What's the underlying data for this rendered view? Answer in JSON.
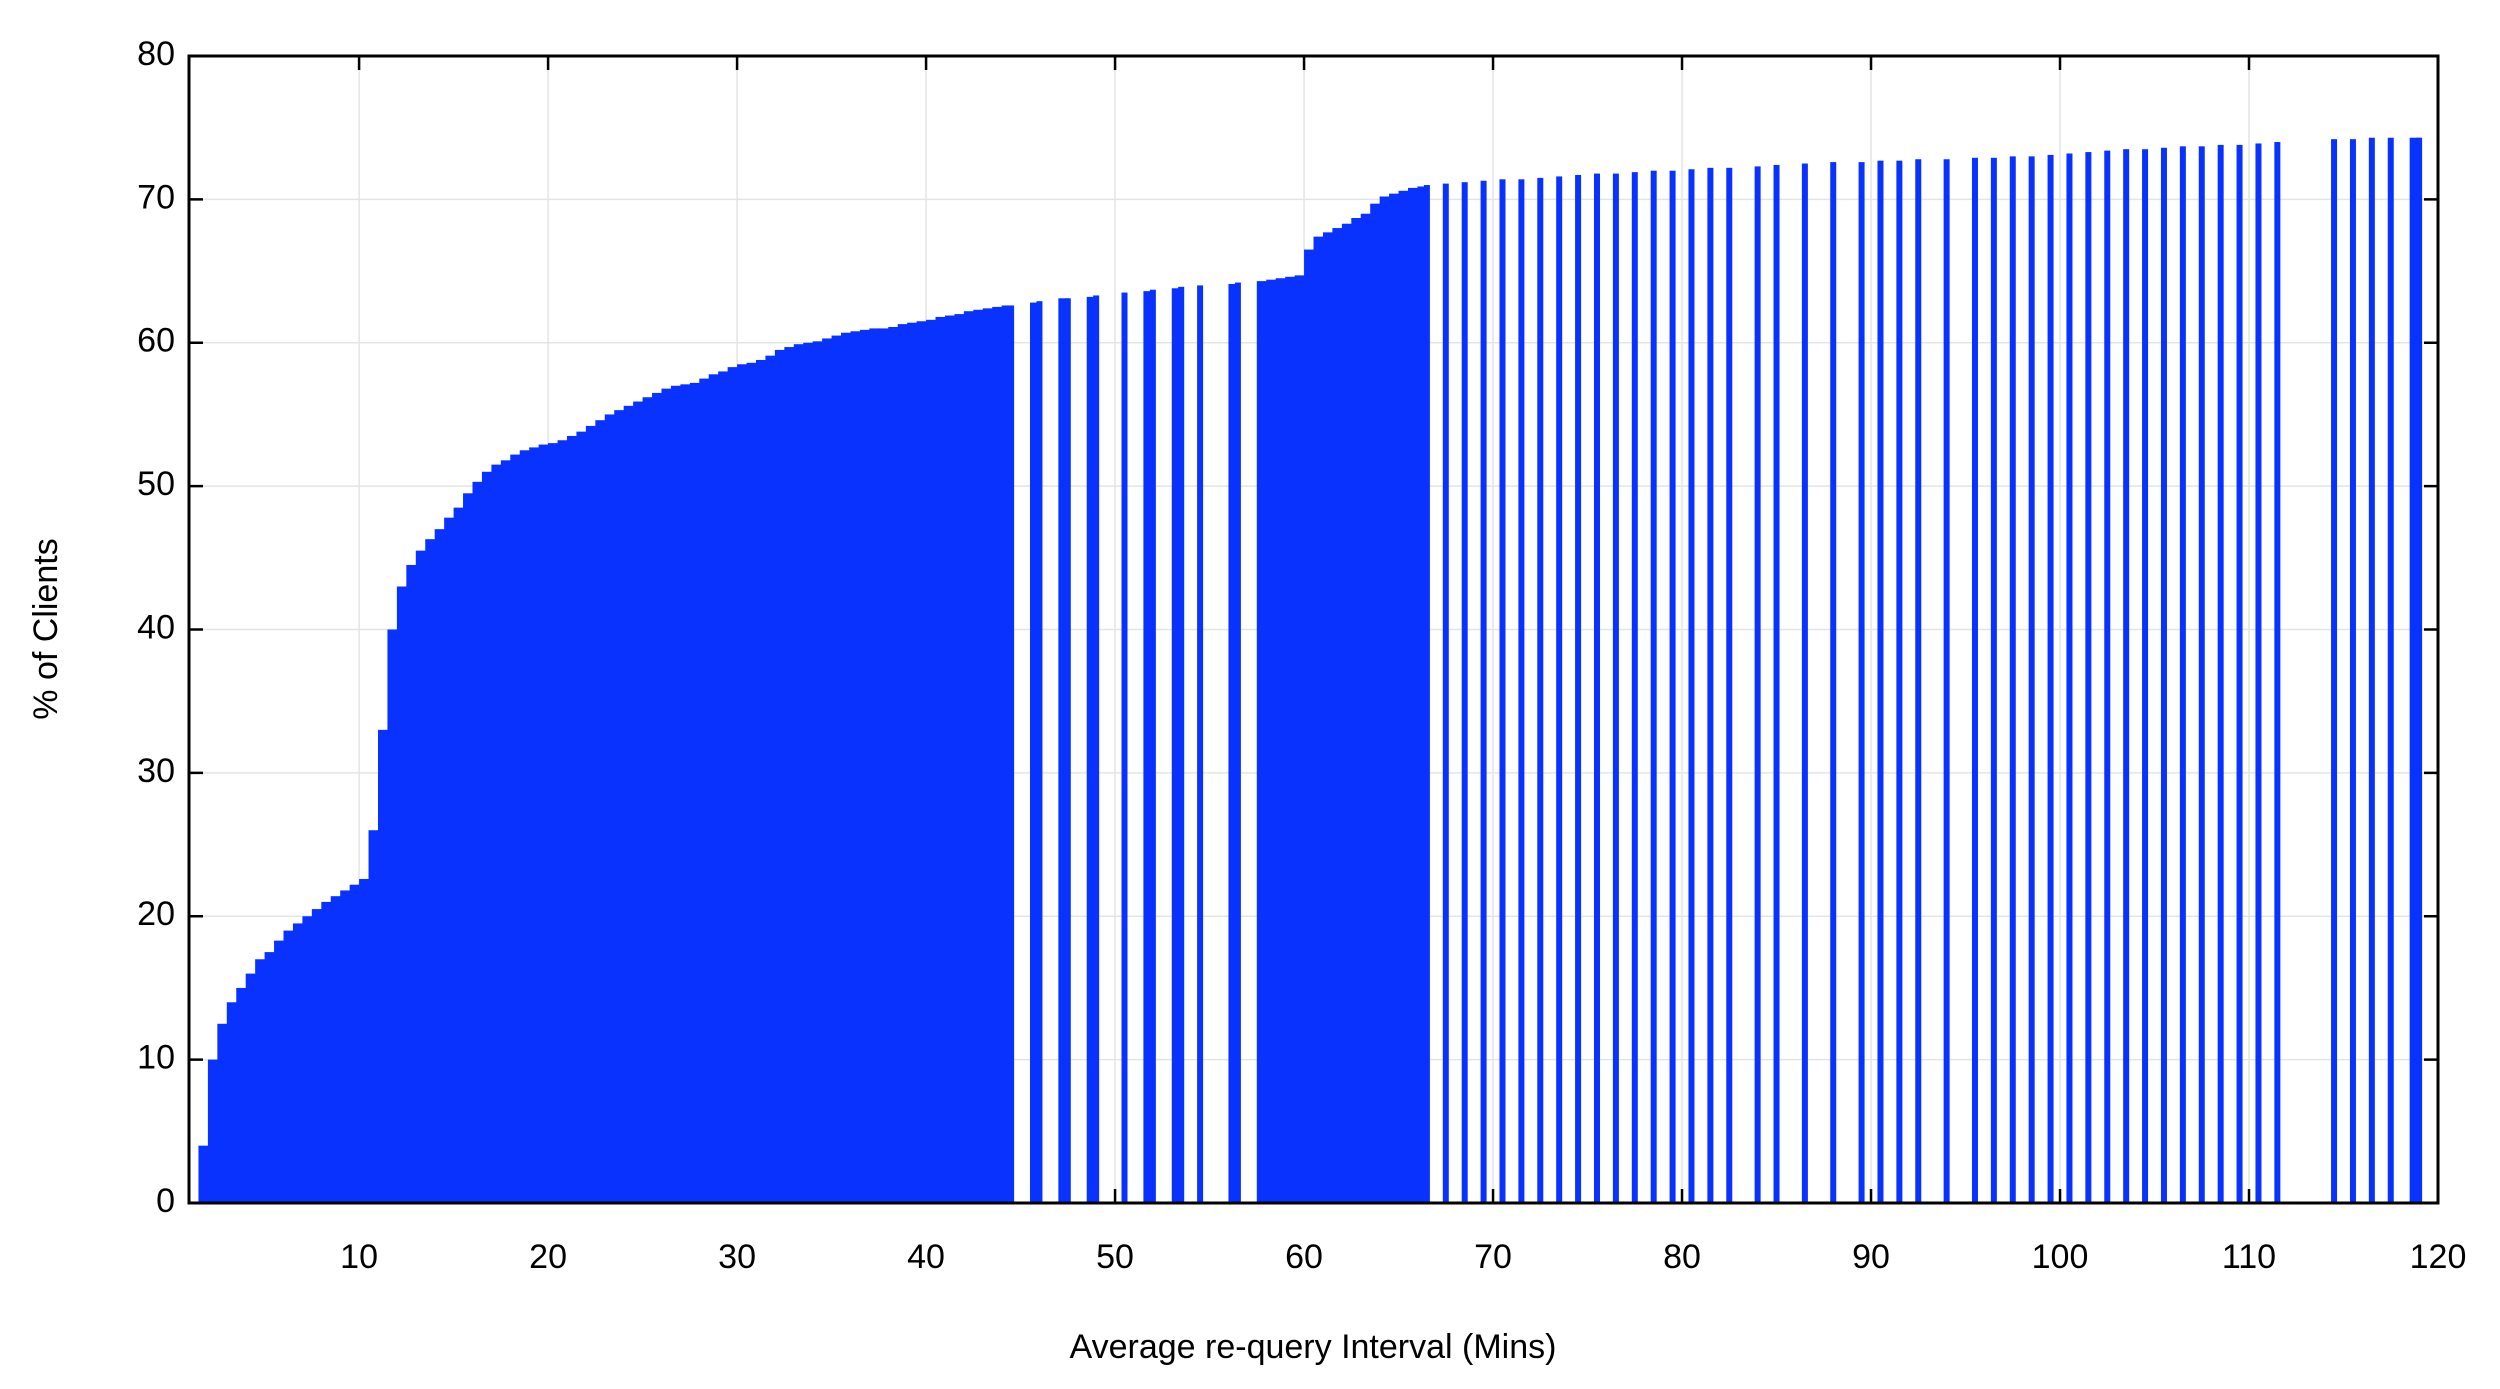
{
  "chart_data": {
    "type": "impulse",
    "xlabel": "Average re-query Interval (Mins)",
    "ylabel": "% of Clients",
    "xlim": [
      1,
      120
    ],
    "ylim": [
      0,
      80
    ],
    "xticks": [
      10,
      20,
      30,
      40,
      50,
      60,
      70,
      80,
      90,
      100,
      110,
      120
    ],
    "yticks": [
      0,
      10,
      20,
      30,
      40,
      50,
      60,
      70,
      80
    ],
    "grid": true,
    "color": "#0a32ff",
    "x": [
      1.5,
      2,
      2.5,
      3,
      3.5,
      4,
      4.5,
      5,
      5.5,
      6,
      6.5,
      7,
      7.5,
      8,
      8.5,
      9,
      9.5,
      10,
      10.5,
      11,
      11.5,
      12,
      12.5,
      13,
      13.5,
      14,
      14.5,
      15,
      15.5,
      16,
      16.5,
      17,
      17.5,
      18,
      18.5,
      19,
      19.5,
      20,
      20.5,
      21,
      21.5,
      22,
      22.5,
      23,
      23.5,
      24,
      24.5,
      25,
      25.5,
      26,
      26.5,
      27,
      27.5,
      28,
      28.5,
      29,
      29.5,
      30,
      30.5,
      31,
      31.5,
      32,
      32.5,
      33,
      33.5,
      34,
      34.5,
      35,
      35.5,
      36,
      36.5,
      37,
      37.5,
      38,
      38.5,
      39,
      39.5,
      40,
      40.5,
      41,
      41.5,
      42,
      42.5,
      43,
      43.5,
      44,
      44.5,
      45.5,
      46,
      47,
      47.5,
      48.5,
      49,
      50.5,
      51.5,
      52,
      53,
      53.5,
      54.5,
      56,
      56.5,
      57.5,
      58,
      58.5,
      59,
      59.5,
      60,
      60.5,
      61,
      61.5,
      62,
      62.5,
      63,
      63.5,
      64,
      64.5,
      65,
      65.5,
      66,
      66.5,
      67.5,
      68.5,
      69.5,
      70.5,
      71.5,
      72.5,
      73.5,
      74.5,
      75.5,
      76.5,
      77.5,
      78.5,
      79.5,
      80.5,
      81.5,
      82.5,
      84,
      85,
      86.5,
      88,
      89.5,
      90.5,
      91.5,
      92.5,
      94,
      95.5,
      96.5,
      97.5,
      98.5,
      99.5,
      100.5,
      101.5,
      102.5,
      103.5,
      104.5,
      105.5,
      106.5,
      107.5,
      108.5,
      109.5,
      110.5,
      111.5,
      114.5,
      115.5,
      116.5,
      117.5,
      118.5,
      119
    ],
    "values": [
      4,
      10,
      12.5,
      14,
      15,
      16,
      17,
      17.5,
      18.3,
      19,
      19.5,
      20,
      20.5,
      21,
      21.4,
      21.8,
      22.2,
      22.6,
      26,
      33,
      40,
      43,
      44.5,
      45.5,
      46.3,
      47,
      47.8,
      48.5,
      49.5,
      50.3,
      51,
      51.5,
      51.8,
      52.2,
      52.5,
      52.7,
      52.9,
      53,
      53.2,
      53.5,
      53.8,
      54.2,
      54.6,
      55,
      55.3,
      55.6,
      55.9,
      56.2,
      56.5,
      56.8,
      57,
      57.1,
      57.2,
      57.5,
      57.8,
      58,
      58.3,
      58.5,
      58.6,
      58.8,
      59.1,
      59.5,
      59.7,
      59.9,
      60,
      60.1,
      60.3,
      60.5,
      60.7,
      60.8,
      60.9,
      61,
      61,
      61.1,
      61.3,
      61.4,
      61.5,
      61.6,
      61.8,
      61.9,
      62,
      62.2,
      62.3,
      62.4,
      62.5,
      62.6,
      62.6,
      62.8,
      62.9,
      63.1,
      63.1,
      63.2,
      63.3,
      63.5,
      63.6,
      63.7,
      63.8,
      63.9,
      64,
      64.1,
      64.2,
      64.3,
      64.4,
      64.5,
      64.6,
      64.7,
      66.5,
      67.4,
      67.7,
      68,
      68.3,
      68.7,
      69,
      69.7,
      70.2,
      70.4,
      70.6,
      70.8,
      70.9,
      71,
      71.1,
      71.2,
      71.3,
      71.4,
      71.4,
      71.5,
      71.6,
      71.7,
      71.8,
      71.8,
      71.9,
      72,
      72,
      72.1,
      72.2,
      72.2,
      72.3,
      72.4,
      72.5,
      72.6,
      72.6,
      72.7,
      72.7,
      72.8,
      72.8,
      72.9,
      72.9,
      73,
      73,
      73.1,
      73.2,
      73.3,
      73.4,
      73.5,
      73.5,
      73.6,
      73.7,
      73.7,
      73.8,
      73.8,
      73.9,
      74,
      74.2,
      74.2,
      74.3,
      74.3,
      74.3,
      74.3
    ]
  }
}
